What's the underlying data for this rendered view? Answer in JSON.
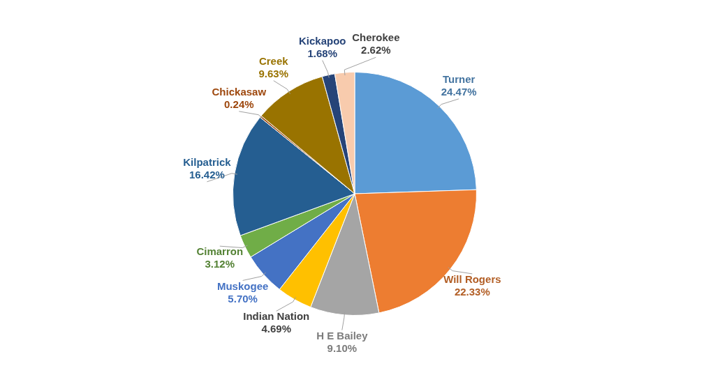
{
  "chart_data": {
    "type": "pie",
    "categories": [
      "Turner",
      "Will Rogers",
      "H E Bailey",
      "Indian Nation",
      "Muskogee",
      "Cimarron",
      "Kilpatrick",
      "Chickasaw",
      "Creek",
      "Kickapoo",
      "Cherokee"
    ],
    "values": [
      24.47,
      22.33,
      9.1,
      4.69,
      5.7,
      3.12,
      16.42,
      0.24,
      9.63,
      1.68,
      2.62
    ],
    "colors": [
      "#5b9bd5",
      "#ed7d31",
      "#a5a5a5",
      "#ffc000",
      "#4472c4",
      "#70ad47",
      "#255e91",
      "#9e480e",
      "#997300",
      "#264478",
      "#f8cbad"
    ],
    "value_labels": [
      "24.47%",
      "22.33%",
      "9.10%",
      "4.69%",
      "5.70%",
      "3.12%",
      "16.42%",
      "0.24%",
      "9.63%",
      "1.68%",
      "2.62%"
    ],
    "legend": false
  }
}
